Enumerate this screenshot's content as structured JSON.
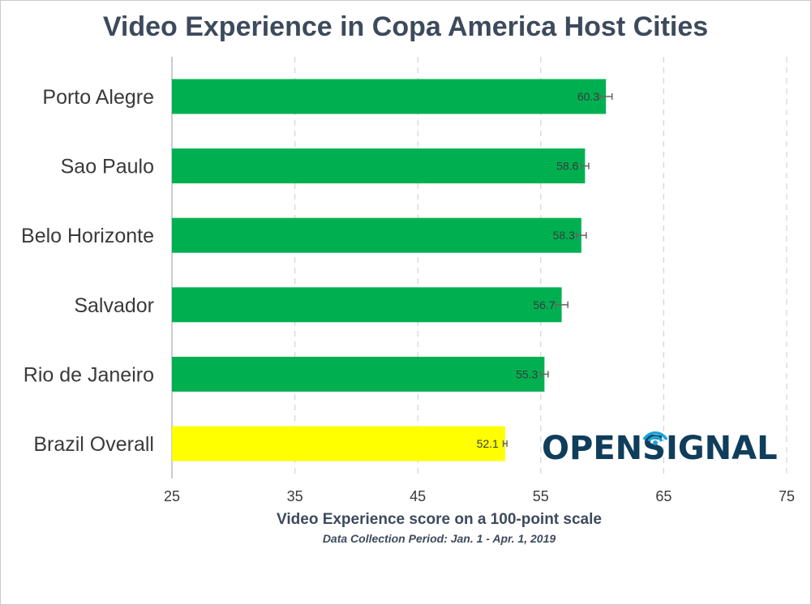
{
  "chart_data": {
    "type": "bar",
    "orientation": "horizontal",
    "title": "Video Experience in Copa America Host Cities",
    "xlabel": "Video Experience score on a 100-point scale",
    "subtitle": "Data Collection Period: Jan. 1 - Apr. 1, 2019",
    "categories": [
      "Porto Alegre",
      "Sao Paulo",
      "Belo Horizonte",
      "Salvador",
      "Rio de Janeiro",
      "Brazil Overall"
    ],
    "values": [
      60.3,
      58.6,
      58.3,
      56.7,
      55.3,
      52.1
    ],
    "value_labels": [
      "60.3",
      "58.6",
      "58.3",
      "56.7",
      "55.3",
      "52.1"
    ],
    "error_margin": [
      0.5,
      0.3,
      0.4,
      0.5,
      0.3,
      0.15
    ],
    "bar_colors": [
      "#00b050",
      "#00b050",
      "#00b050",
      "#00b050",
      "#00b050",
      "#ffff00"
    ],
    "xlim": [
      25,
      75
    ],
    "xticks": [
      25,
      35,
      45,
      55,
      65,
      75
    ],
    "xtick_labels": [
      "25",
      "35",
      "45",
      "55",
      "65",
      "75"
    ],
    "grid": "vertical dashed",
    "legend": "none"
  },
  "logo": {
    "text_before": "OPENS",
    "text_after": "GNAL",
    "color": "#0f3d5c",
    "accent": "#1aa3d6"
  }
}
